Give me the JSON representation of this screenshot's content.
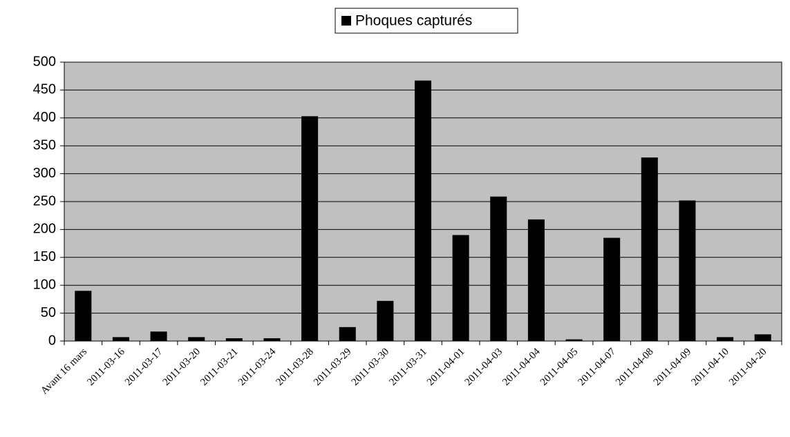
{
  "chart_data": {
    "type": "bar",
    "categories": [
      "Avant 16 mars",
      "2011-03-16",
      "2011-03-17",
      "2011-03-20",
      "2011-03-21",
      "2011-03-24",
      "2011-03-28",
      "2011-03-29",
      "2011-03-30",
      "2011-03-31",
      "2011-04-01",
      "2011-04-03",
      "2011-04-04",
      "2011-04-05",
      "2011-04-07",
      "2011-04-08",
      "2011-04-09",
      "2011-04-10",
      "2011-04-20"
    ],
    "series": [
      {
        "name": "Phoques capturés",
        "color": "#000000",
        "values": [
          90,
          7,
          17,
          7,
          5,
          5,
          403,
          25,
          72,
          467,
          190,
          259,
          218,
          3,
          185,
          329,
          252,
          7,
          12
        ]
      }
    ],
    "ylim": [
      0,
      500
    ],
    "yticks": [
      0,
      50,
      100,
      150,
      200,
      250,
      300,
      350,
      400,
      450,
      500
    ],
    "grid": true,
    "legend": "top",
    "plot_background": "#c0c0c0"
  }
}
